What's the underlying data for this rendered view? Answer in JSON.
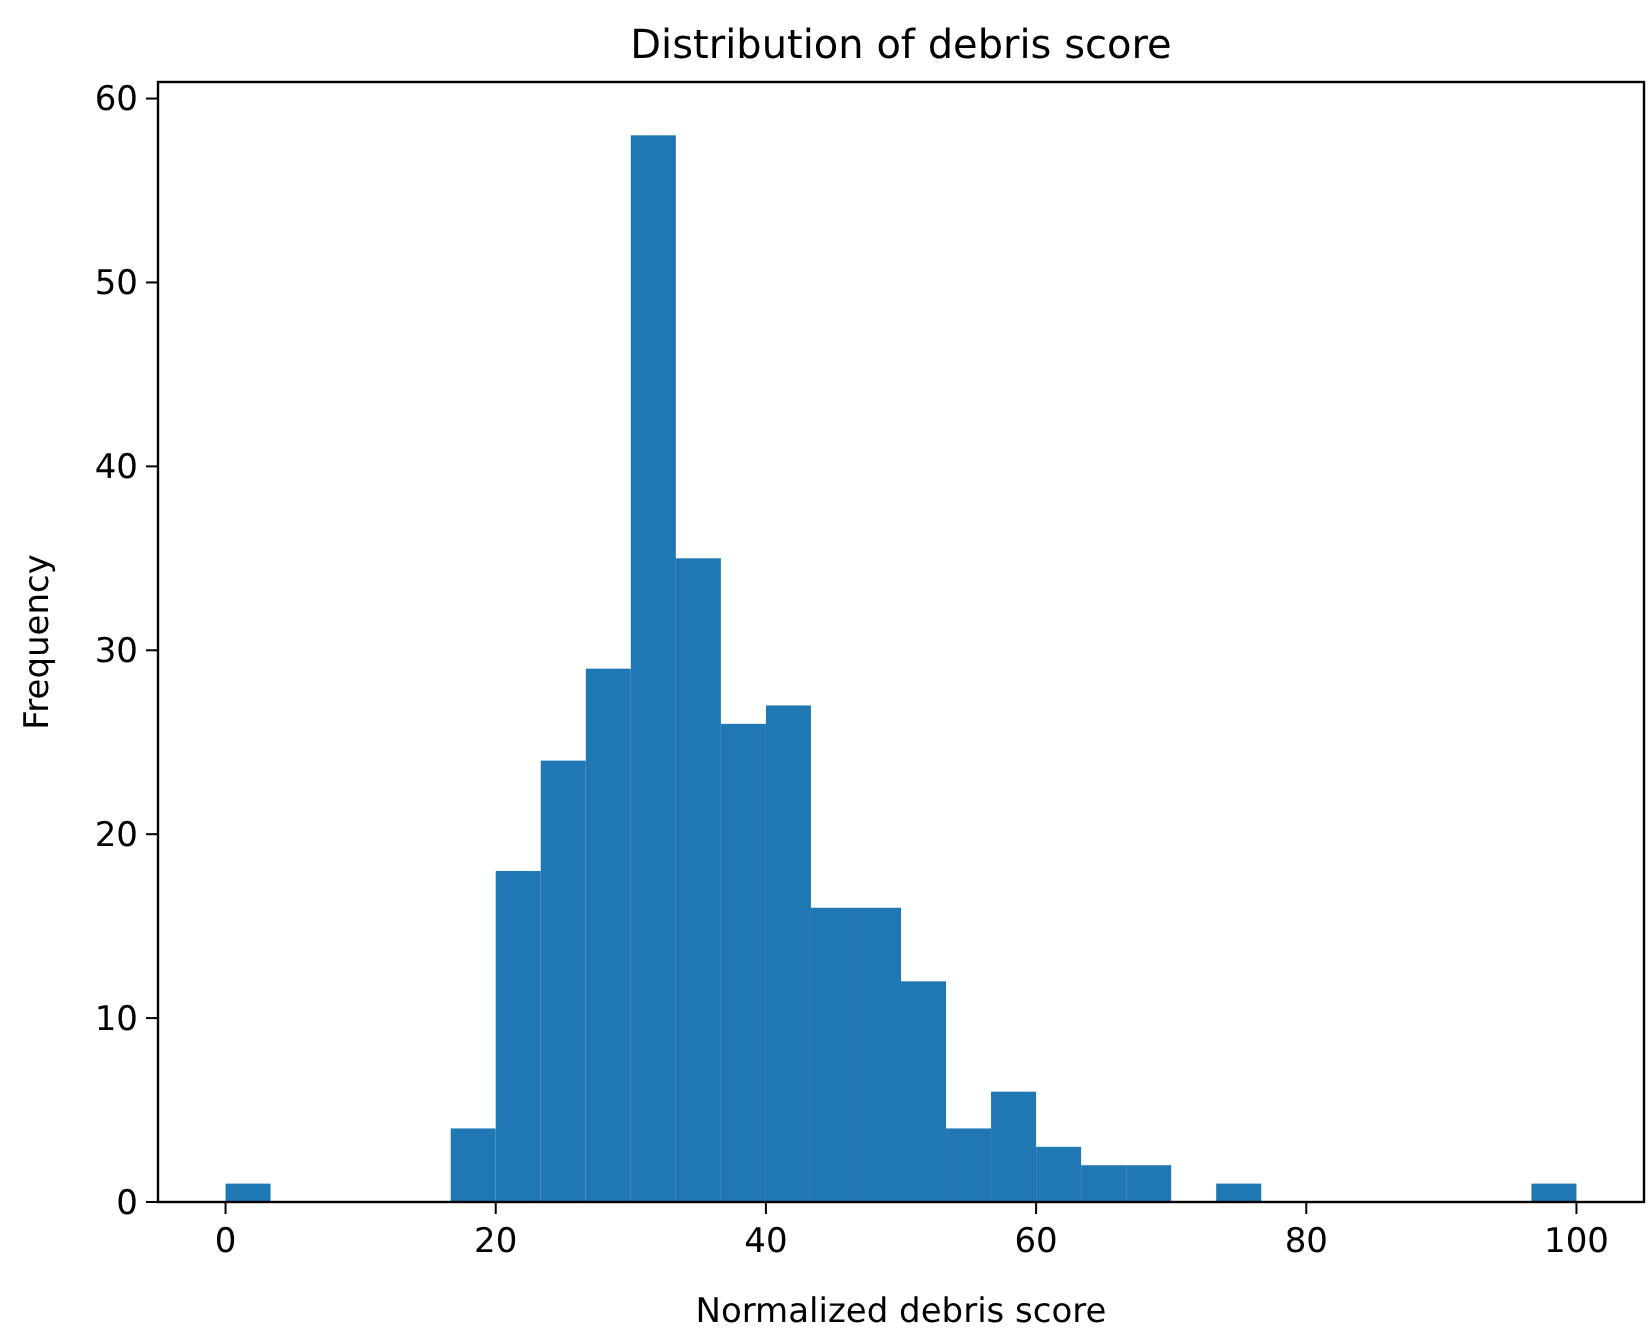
{
  "chart_data": {
    "type": "histogram",
    "title": "Distribution of debris score",
    "xlabel": "Normalized debris score",
    "ylabel": "Frequency",
    "bins": [
      0,
      3.333,
      6.667,
      10,
      13.333,
      16.667,
      20,
      23.333,
      26.667,
      30,
      33.333,
      36.667,
      40,
      43.333,
      46.667,
      50,
      53.333,
      56.667,
      60,
      63.333,
      66.667,
      70,
      73.333,
      76.667,
      80,
      83.333,
      86.667,
      90,
      93.333,
      96.667,
      100
    ],
    "values": [
      1,
      0,
      0,
      0,
      0,
      4,
      18,
      24,
      29,
      58,
      35,
      26,
      27,
      16,
      16,
      12,
      4,
      6,
      3,
      2,
      2,
      0,
      1,
      0,
      0,
      0,
      0,
      0,
      0,
      1
    ],
    "color": "#1f77b4",
    "xlim": [
      -5,
      105
    ],
    "ylim": [
      0,
      60.9
    ],
    "xticks": [
      0,
      20,
      40,
      60,
      80,
      100
    ],
    "yticks": [
      0,
      10,
      20,
      30,
      40,
      50,
      60
    ],
    "grid": false
  }
}
